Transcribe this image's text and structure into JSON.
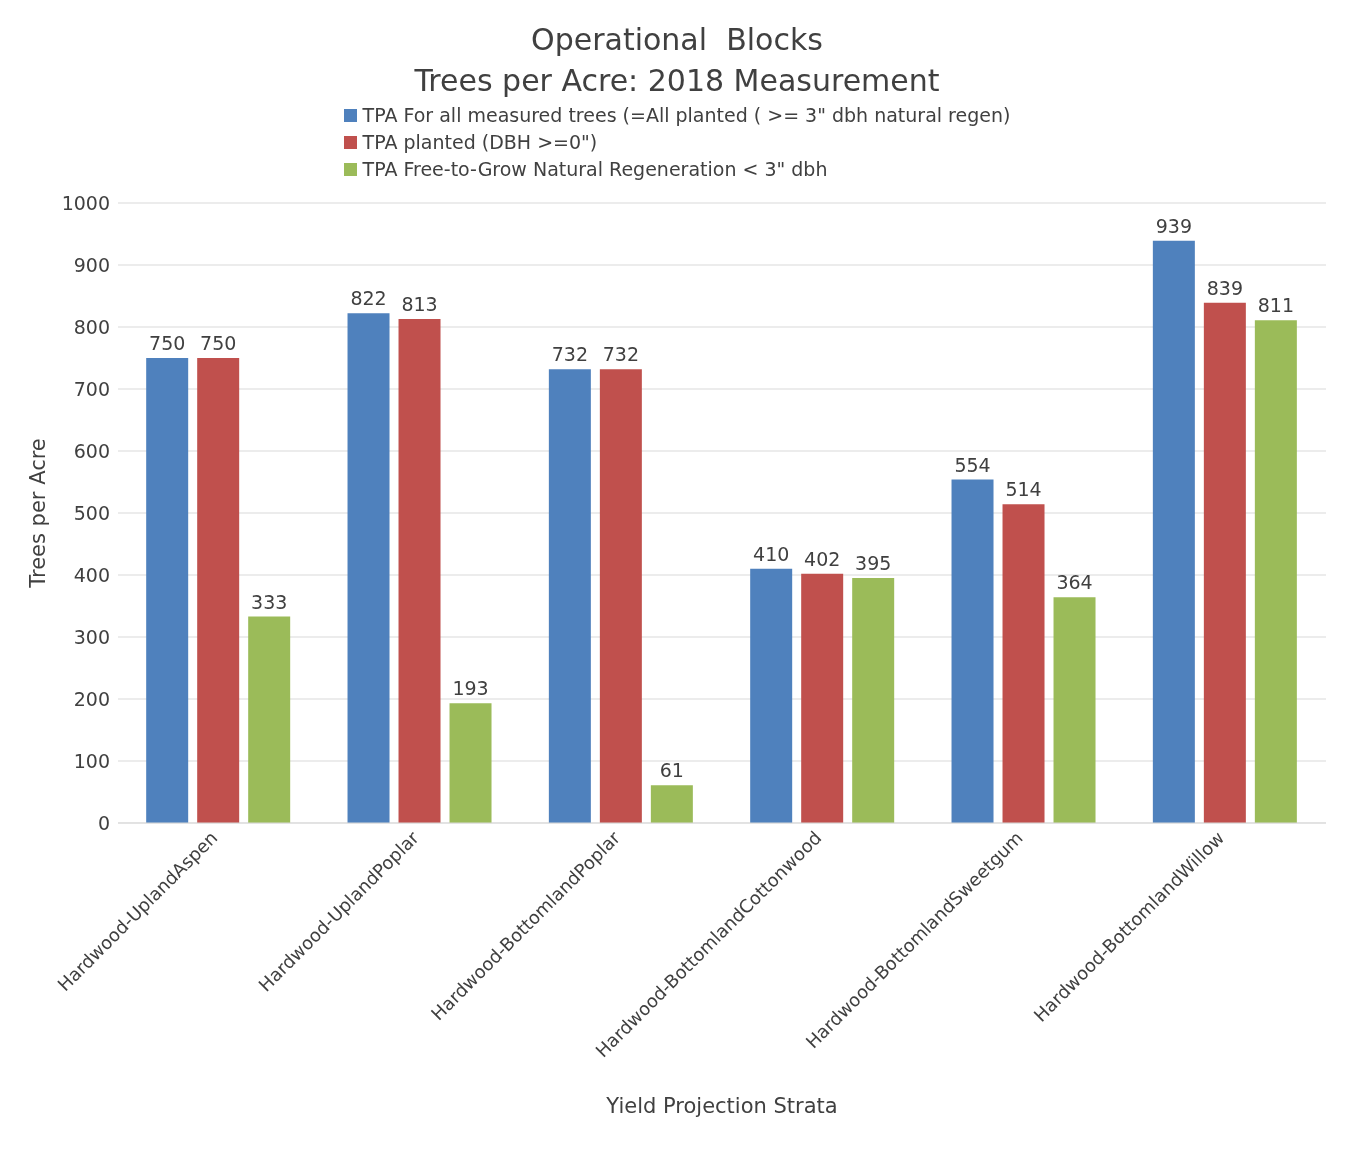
{
  "chart_data": {
    "type": "bar",
    "title": "Operational  Blocks",
    "subtitle": "Trees per Acre: 2018 Measurement",
    "xlabel": "Yield Projection Strata",
    "ylabel": "Trees per Acre",
    "categories": [
      "Hardwood-UplandAspen",
      "Hardwood-UplandPoplar",
      "Hardwood-BottomlandPoplar",
      "Hardwood-BottomlandCottonwood",
      "Hardwood-BottomlandSweetgum",
      "Hardwood-BottomlandWillow"
    ],
    "series": [
      {
        "name": "TPA For all measured trees (=All planted ( >= 3\" dbh natural regen)",
        "color": "#4f81bd",
        "values": [
          750,
          822,
          732,
          410,
          554,
          939
        ]
      },
      {
        "name": "TPA planted (DBH >=0\")",
        "color": "#c0504d",
        "values": [
          750,
          813,
          732,
          402,
          514,
          839
        ]
      },
      {
        "name": "TPA Free-to-Grow Natural Regeneration < 3\" dbh",
        "color": "#9bbb59",
        "values": [
          333,
          193,
          61,
          395,
          364,
          811
        ]
      }
    ],
    "ylim": [
      0,
      1000
    ],
    "yticks": [
      0,
      100,
      200,
      300,
      400,
      500,
      600,
      700,
      800,
      900,
      1000
    ],
    "grid": "y",
    "legend": "top",
    "data_labels": true
  }
}
